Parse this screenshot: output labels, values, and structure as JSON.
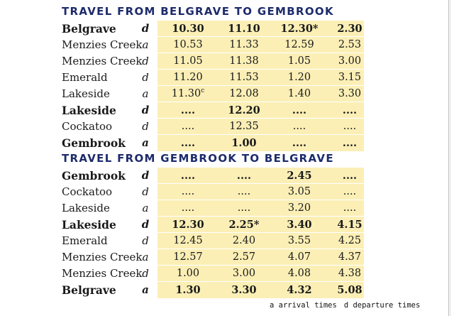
{
  "sections": [
    {
      "title": "TRAVEL FROM BELGRAVE TO GEMBROOK",
      "rows": [
        {
          "stop": "Belgrave",
          "ad": "d",
          "bold": true,
          "times": [
            "10.30",
            "11.10",
            "12.30*",
            "2.30"
          ]
        },
        {
          "stop": "Menzies Creek",
          "ad": "a",
          "bold": false,
          "times": [
            "10.53",
            "11.33",
            "12.59",
            "2.53"
          ]
        },
        {
          "stop": "Menzies Creek",
          "ad": "d",
          "bold": false,
          "times": [
            "11.05",
            "11.38",
            "1.05",
            "3.00"
          ]
        },
        {
          "stop": "Emerald",
          "ad": "d",
          "bold": false,
          "times": [
            "11.20",
            "11.53",
            "1.20",
            "3.15"
          ]
        },
        {
          "stop": "Lakeside",
          "ad": "a",
          "bold": false,
          "times": [
            "11.30",
            "12.08",
            "1.40",
            "3.30"
          ],
          "sup": "c"
        },
        {
          "stop": "Lakeside",
          "ad": "d",
          "bold": true,
          "times": [
            "....",
            "12.20",
            "....",
            "...."
          ]
        },
        {
          "stop": "Cockatoo",
          "ad": "d",
          "bold": false,
          "times": [
            "....",
            "12.35",
            "....",
            "...."
          ]
        },
        {
          "stop": "Gembrook",
          "ad": "a",
          "bold": true,
          "times": [
            "....",
            "1.00",
            "....",
            "...."
          ]
        }
      ]
    },
    {
      "title": "TRAVEL FROM GEMBROOK TO BELGRAVE",
      "rows": [
        {
          "stop": "Gembrook",
          "ad": "d",
          "bold": true,
          "times": [
            "....",
            "....",
            "2.45",
            "...."
          ]
        },
        {
          "stop": "Cockatoo",
          "ad": "d",
          "bold": false,
          "times": [
            "....",
            "....",
            "3.05",
            "...."
          ]
        },
        {
          "stop": "Lakeside",
          "ad": "a",
          "bold": false,
          "times": [
            "....",
            "....",
            "3.20",
            "...."
          ]
        },
        {
          "stop": "Lakeside",
          "ad": "d",
          "bold": true,
          "times": [
            "12.30",
            "2.25*",
            "3.40",
            "4.15"
          ]
        },
        {
          "stop": "Emerald",
          "ad": "d",
          "bold": false,
          "times": [
            "12.45",
            "2.40",
            "3.55",
            "4.25"
          ]
        },
        {
          "stop": "Menzies Creek",
          "ad": "a",
          "bold": false,
          "times": [
            "12.57",
            "2.57",
            "4.07",
            "4.37"
          ]
        },
        {
          "stop": "Menzies Creek",
          "ad": "d",
          "bold": false,
          "times": [
            "1.00",
            "3.00",
            "4.08",
            "4.38"
          ]
        },
        {
          "stop": "Belgrave",
          "ad": "a",
          "bold": true,
          "times": [
            "1.30",
            "3.30",
            "4.32",
            "5.08"
          ]
        }
      ]
    }
  ],
  "legend": {
    "arrival": "a arrival times",
    "departure": "d departure times"
  },
  "colors": {
    "title": "#1d2b6b",
    "panel": "#fbefb6"
  }
}
